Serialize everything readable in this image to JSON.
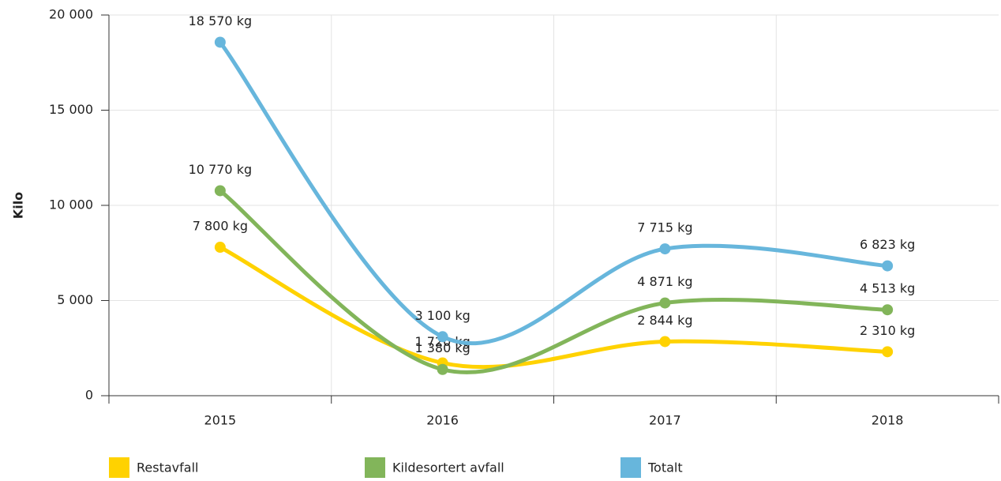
{
  "chart_data": {
    "type": "line",
    "y_label": "Kilo",
    "categories": [
      "2015",
      "2016",
      "2017",
      "2018"
    ],
    "series": [
      {
        "name": "Restavfall",
        "color": "#ffd200",
        "values": [
          7800,
          1720,
          2844,
          2310
        ],
        "value_labels": [
          "7 800 kg",
          "1 720 kg",
          "2 844 kg",
          "2 310 kg"
        ]
      },
      {
        "name": "Kildesortert avfall",
        "color": "#82b55a",
        "values": [
          10770,
          1380,
          4871,
          4513
        ],
        "value_labels": [
          "10 770 kg",
          "1 380 kg",
          "4 871 kg",
          "4 513 kg"
        ]
      },
      {
        "name": "Totalt",
        "color": "#67b6dc",
        "values": [
          18570,
          3100,
          7715,
          6823
        ],
        "value_labels": [
          "18 570 kg",
          "3 100 kg",
          "7 715 kg",
          "6 823 kg"
        ]
      }
    ],
    "ylim": [
      0,
      20000
    ],
    "yticks": [
      0,
      {
        "value": 5000,
        "label": "5 000"
      },
      {
        "value": 10000,
        "label": "10 000"
      },
      {
        "value": 15000,
        "label": "15 000"
      },
      {
        "value": 20000,
        "label": "20 000"
      }
    ],
    "grid": true,
    "smooth": true,
    "legend": "bottom"
  }
}
